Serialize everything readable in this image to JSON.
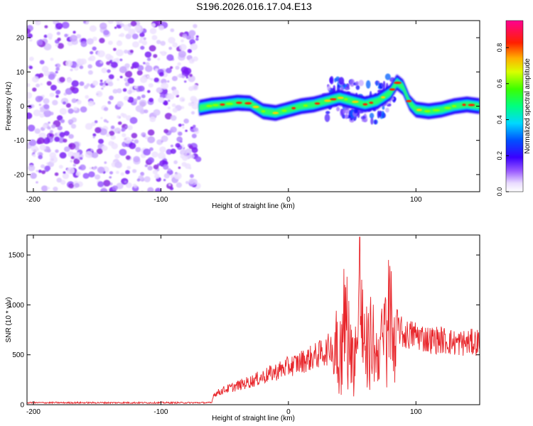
{
  "title": "S196.2026.016.17.04.E13",
  "chart_data": [
    {
      "type": "heatmap",
      "xlabel": "Height of straight line (km)",
      "ylabel": "Frequency (Hz)",
      "xlim": [
        -205,
        150
      ],
      "ylim": [
        -25,
        25
      ],
      "xticks": [
        "-200",
        "-100",
        "0",
        "100"
      ],
      "yticks": [
        "-20",
        "-10",
        "0",
        "10",
        "20"
      ],
      "noise_region_x": [
        -205,
        -70
      ],
      "ridge": {
        "x": [
          -70,
          -60,
          -50,
          -40,
          -30,
          -20,
          -10,
          0,
          10,
          20,
          30,
          40,
          50,
          60,
          70,
          80,
          85,
          90,
          95,
          100,
          110,
          120,
          130,
          140,
          150
        ],
        "freq": [
          -0.5,
          0.2,
          0.5,
          1.0,
          0.8,
          -1.5,
          -2.0,
          -1.0,
          0.0,
          0.5,
          1.5,
          2.5,
          1.5,
          0.5,
          1.5,
          4.0,
          7.0,
          5.5,
          1.0,
          -1.0,
          -1.5,
          -1.0,
          0.0,
          0.5,
          0.0
        ]
      },
      "colorbar": {
        "label": "Normalized spectral amplitude",
        "ticks": [
          "0.0",
          "0.2",
          "0.4",
          "0.6",
          "0.8"
        ],
        "range": [
          0,
          0.95
        ]
      }
    },
    {
      "type": "line",
      "xlabel": "Height of straight line (km)",
      "ylabel": "SNR (10 * v/v)",
      "xlim": [
        -205,
        150
      ],
      "ylim": [
        0,
        1700
      ],
      "xticks": [
        "-200",
        "-100",
        "0",
        "100"
      ],
      "yticks": [
        "0",
        "500",
        "1000",
        "1500"
      ],
      "series": [
        {
          "color": "#e8262b",
          "x": [
            -205,
            -150,
            -100,
            -60,
            -59,
            -50,
            -40,
            -30,
            -20,
            -10,
            0,
            10,
            20,
            30,
            36,
            38,
            40,
            45,
            50,
            55,
            56,
            60,
            65,
            70,
            75,
            80,
            85,
            90,
            100,
            110,
            120,
            130,
            140,
            150
          ],
          "values": [
            20,
            20,
            20,
            20,
            100,
            150,
            190,
            230,
            280,
            330,
            380,
            430,
            480,
            540,
            620,
            1230,
            700,
            1360,
            650,
            1100,
            1680,
            700,
            1000,
            750,
            1000,
            1450,
            800,
            700,
            700,
            650,
            650,
            620,
            620,
            630
          ]
        }
      ]
    }
  ]
}
